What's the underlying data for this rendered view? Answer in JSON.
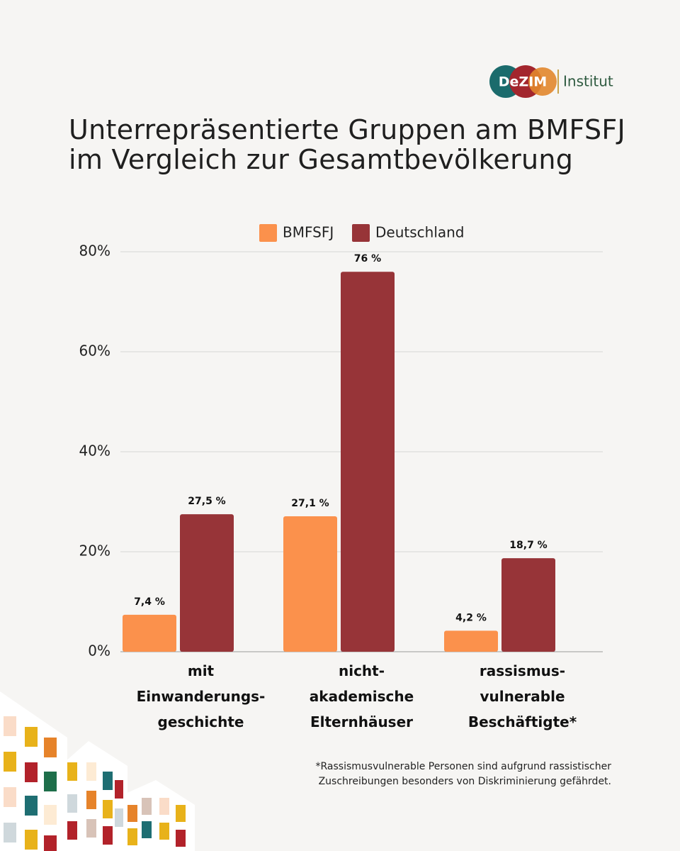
{
  "chart_data": {
    "type": "bar",
    "title": "Unterrepräsentierte Gruppen am BMFSFJ\nim Vergleich zur Gesamtbevölkerung",
    "categories": [
      "mit\nEinwanderungs-\ngeschichte",
      "nicht-\nakademische\nElternhäuser",
      "rassismus-\nvulnerable\nBeschäftigte*"
    ],
    "series": [
      {
        "name": "BMFSFJ",
        "color": "#fb914c",
        "values": [
          7.4,
          27.1,
          4.2
        ],
        "value_labels": [
          "7,4 %",
          "27,1 %",
          "4,2 %"
        ]
      },
      {
        "name": "Deutschland",
        "color": "#973438",
        "values": [
          27.5,
          76,
          18.7
        ],
        "value_labels": [
          "27,5 %",
          "76 %",
          "18,7 %"
        ]
      }
    ],
    "ylim": [
      0,
      80
    ],
    "yticks": [
      {
        "value": 0,
        "label": "0%"
      },
      {
        "value": 20,
        "label": "20%"
      },
      {
        "value": 40,
        "label": "40%"
      },
      {
        "value": 60,
        "label": "60%"
      },
      {
        "value": 80,
        "label": "80%"
      }
    ],
    "grid": true,
    "footnote": "*Rassismusvulnerable Personen sind aufgrund rassistischer\nZuschreibungen besonders von Diskriminierung gefährdet.",
    "logo": {
      "mark": "DeZIM",
      "text": "Institut"
    }
  }
}
